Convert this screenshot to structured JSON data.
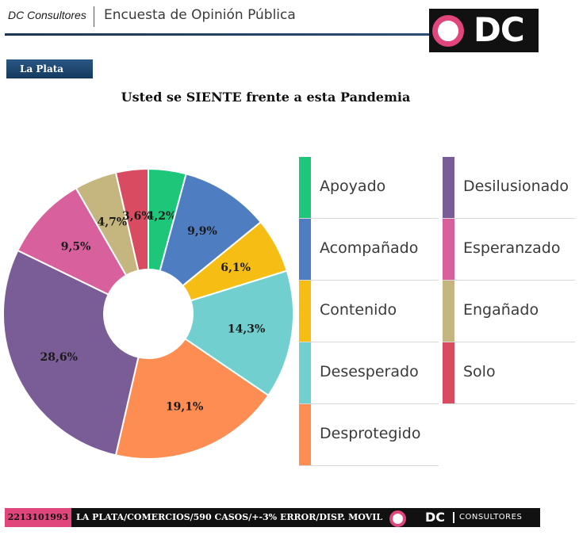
{
  "header": {
    "brand": "DC Consultores",
    "title": "Encuesta de Opinión Pública",
    "logo_text": "DC"
  },
  "region_tag": "La Plata",
  "chart_data": {
    "type": "pie",
    "title": "Usted se SIENTE frente a esta Pandemia",
    "series": [
      {
        "label": "Apoyado",
        "value": 4.2,
        "value_label": "4,2%",
        "color": "#1ec67a"
      },
      {
        "label": "Acompañado",
        "value": 9.9,
        "value_label": "9,9%",
        "color": "#4f7dc2"
      },
      {
        "label": "Contenido",
        "value": 6.1,
        "value_label": "6,1%",
        "color": "#f6be14"
      },
      {
        "label": "Desesperado",
        "value": 14.3,
        "value_label": "14,3%",
        "color": "#72cfcf"
      },
      {
        "label": "Desprotegido",
        "value": 19.1,
        "value_label": "19,1%",
        "color": "#fd8d52"
      },
      {
        "label": "Desilusionado",
        "value": 28.6,
        "value_label": "28,6%",
        "color": "#7a5d96"
      },
      {
        "label": "Esperanzado",
        "value": 9.5,
        "value_label": "9,5%",
        "color": "#d8609c"
      },
      {
        "label": "Engañado",
        "value": 4.7,
        "value_label": "4,7%",
        "color": "#c5b57f"
      },
      {
        "label": "Solo",
        "value": 3.6,
        "value_label": "3,6%",
        "color": "#d94b60"
      }
    ],
    "legend_placement": "right"
  },
  "footer": {
    "phone": "2213101993",
    "info": "LA PLATA/COMERCIOS/590 CASOS/+-3% ERROR/DISP. MOVIL",
    "logo_dc": "DC",
    "logo_consultores": "CONSULTORES"
  }
}
